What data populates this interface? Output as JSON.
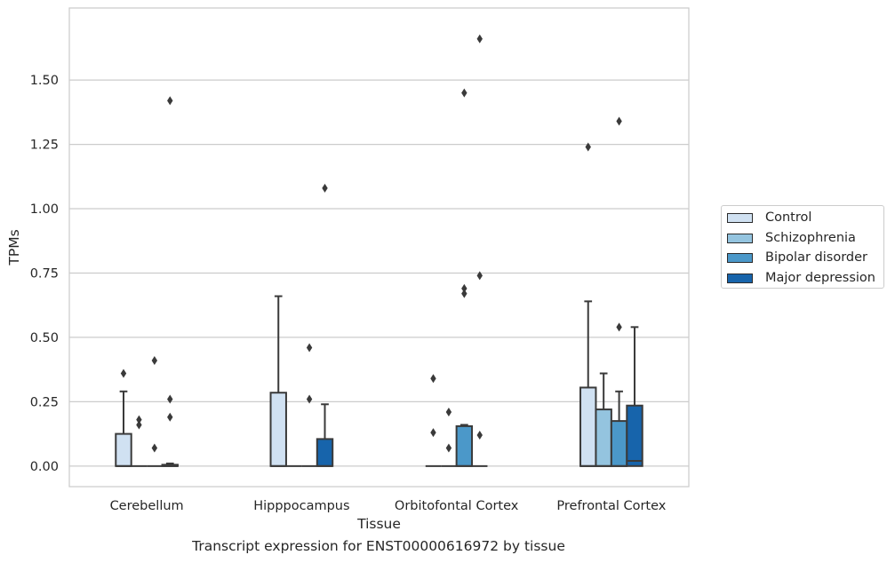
{
  "caption": "Transcript expression for ENST00000616972 by tissue",
  "chart_data": {
    "type": "boxplot",
    "xlabel": "Tissue",
    "ylabel": "TPMs",
    "ylim": [
      -0.08,
      1.78
    ],
    "yticks": [
      "0.00",
      "0.25",
      "0.50",
      "0.75",
      "1.00",
      "1.25",
      "1.50"
    ],
    "grid": "horizontal",
    "legend_placement": "right",
    "categories": [
      "Cerebellum",
      "Hipppocampus",
      "Orbitofontal Cortex",
      "Prefrontal Cortex"
    ],
    "series": [
      {
        "name": "Control",
        "color": "#d0e1f2",
        "boxes": [
          {
            "q1": 0,
            "median": 0,
            "q3": 0.125,
            "whisker_low": 0,
            "whisker_high": 0.29,
            "outliers": [
              0.36
            ]
          },
          {
            "q1": 0,
            "median": 0,
            "q3": 0.285,
            "whisker_low": 0,
            "whisker_high": 0.66,
            "outliers": []
          },
          {
            "q1": 0,
            "median": 0,
            "q3": 0,
            "whisker_low": 0,
            "whisker_high": 0,
            "outliers": [
              0.34,
              0.13
            ]
          },
          {
            "q1": 0,
            "median": 0,
            "q3": 0.305,
            "whisker_low": 0,
            "whisker_high": 0.64,
            "outliers": [
              1.24
            ]
          }
        ]
      },
      {
        "name": "Schizophrenia",
        "color": "#94c4df",
        "boxes": [
          {
            "q1": 0,
            "median": 0,
            "q3": 0,
            "whisker_low": 0,
            "whisker_high": 0,
            "outliers": [
              0.18,
              0.16
            ]
          },
          {
            "q1": 0,
            "median": 0,
            "q3": 0,
            "whisker_low": 0,
            "whisker_high": 0,
            "outliers": []
          },
          {
            "q1": 0,
            "median": 0,
            "q3": 0,
            "whisker_low": 0,
            "whisker_high": 0,
            "outliers": [
              0.21,
              0.07
            ]
          },
          {
            "q1": 0,
            "median": 0,
            "q3": 0.22,
            "whisker_low": 0,
            "whisker_high": 0.36,
            "outliers": []
          }
        ]
      },
      {
        "name": "Bipolar disorder",
        "color": "#4b98c9",
        "boxes": [
          {
            "q1": 0,
            "median": 0,
            "q3": 0,
            "whisker_low": 0,
            "whisker_high": 0,
            "outliers": [
              0.41,
              0.07
            ]
          },
          {
            "q1": 0,
            "median": 0,
            "q3": 0,
            "whisker_low": 0,
            "whisker_high": 0,
            "outliers": [
              0.46,
              0.26
            ]
          },
          {
            "q1": 0,
            "median": 0,
            "q3": 0.155,
            "whisker_low": 0,
            "whisker_high": 0.16,
            "outliers": [
              1.45,
              0.69,
              0.67
            ]
          },
          {
            "q1": 0,
            "median": 0,
            "q3": 0.175,
            "whisker_low": 0,
            "whisker_high": 0.29,
            "outliers": [
              1.34,
              0.54
            ]
          }
        ]
      },
      {
        "name": "Major depression",
        "color": "#1764ab",
        "boxes": [
          {
            "q1": 0,
            "median": 0,
            "q3": 0.005,
            "whisker_low": 0,
            "whisker_high": 0.01,
            "outliers": [
              1.42,
              0.26,
              0.19
            ]
          },
          {
            "q1": 0,
            "median": 0,
            "q3": 0.105,
            "whisker_low": 0,
            "whisker_high": 0.24,
            "outliers": [
              1.08
            ]
          },
          {
            "q1": 0,
            "median": 0,
            "q3": 0,
            "whisker_low": 0,
            "whisker_high": 0,
            "outliers": [
              1.66,
              0.74,
              0.12
            ]
          },
          {
            "q1": 0,
            "median": 0.02,
            "q3": 0.235,
            "whisker_low": 0,
            "whisker_high": 0.54,
            "outliers": []
          }
        ]
      }
    ]
  }
}
